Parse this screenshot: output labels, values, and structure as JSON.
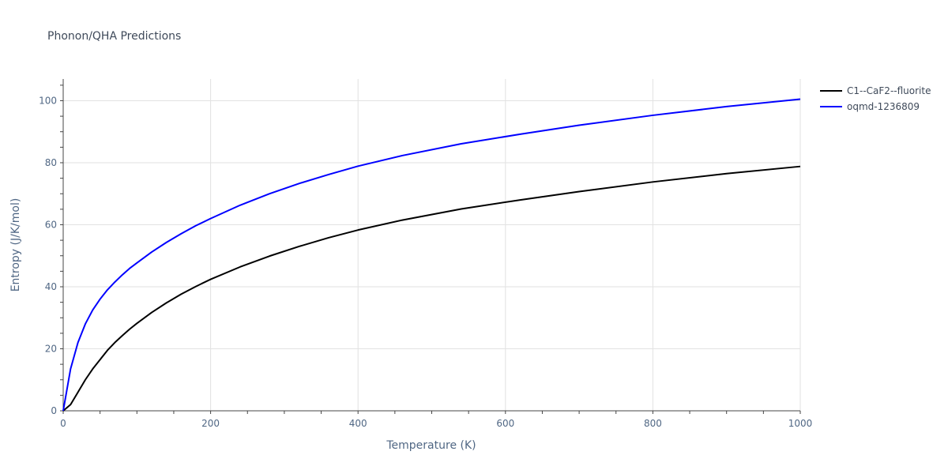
{
  "chart_data": {
    "type": "line",
    "title": "Phonon/QHA Predictions",
    "xlabel": "Temperature (K)",
    "ylabel": "Entropy (J/K/mol)",
    "xlim": [
      0,
      1000
    ],
    "ylim": [
      0,
      107
    ],
    "x_ticks": [
      0,
      200,
      400,
      600,
      800,
      1000
    ],
    "y_ticks": [
      0,
      20,
      40,
      60,
      80,
      100
    ],
    "grid": true,
    "legend_position": "top-right",
    "series": [
      {
        "name": "C1--CaF2--fluorite",
        "color": "#000000",
        "x": [
          0,
          10,
          20,
          30,
          40,
          50,
          60,
          70,
          80,
          90,
          100,
          120,
          140,
          160,
          180,
          200,
          240,
          280,
          320,
          360,
          400,
          460,
          540,
          620,
          700,
          800,
          900,
          1000
        ],
        "y": [
          0,
          2,
          6,
          10,
          13.5,
          16.5,
          19.5,
          22,
          24.2,
          26.3,
          28.2,
          31.7,
          34.8,
          37.6,
          40.1,
          42.4,
          46.4,
          49.9,
          53,
          55.8,
          58.3,
          61.5,
          65.1,
          68,
          70.7,
          73.8,
          76.5,
          78.8
        ]
      },
      {
        "name": "oqmd-1236809",
        "color": "#0000ff",
        "x": [
          0,
          10,
          20,
          30,
          40,
          50,
          60,
          70,
          80,
          90,
          100,
          120,
          140,
          160,
          180,
          200,
          240,
          280,
          320,
          360,
          400,
          460,
          540,
          620,
          700,
          800,
          900,
          1000
        ],
        "y": [
          0,
          13.5,
          22,
          28,
          32.5,
          36,
          39,
          41.5,
          43.8,
          45.9,
          47.7,
          51.2,
          54.3,
          57.1,
          59.7,
          62,
          66.3,
          70,
          73.3,
          76.2,
          78.9,
          82.3,
          86.1,
          89.2,
          92.1,
          95.3,
          98.1,
          100.5
        ]
      }
    ]
  }
}
